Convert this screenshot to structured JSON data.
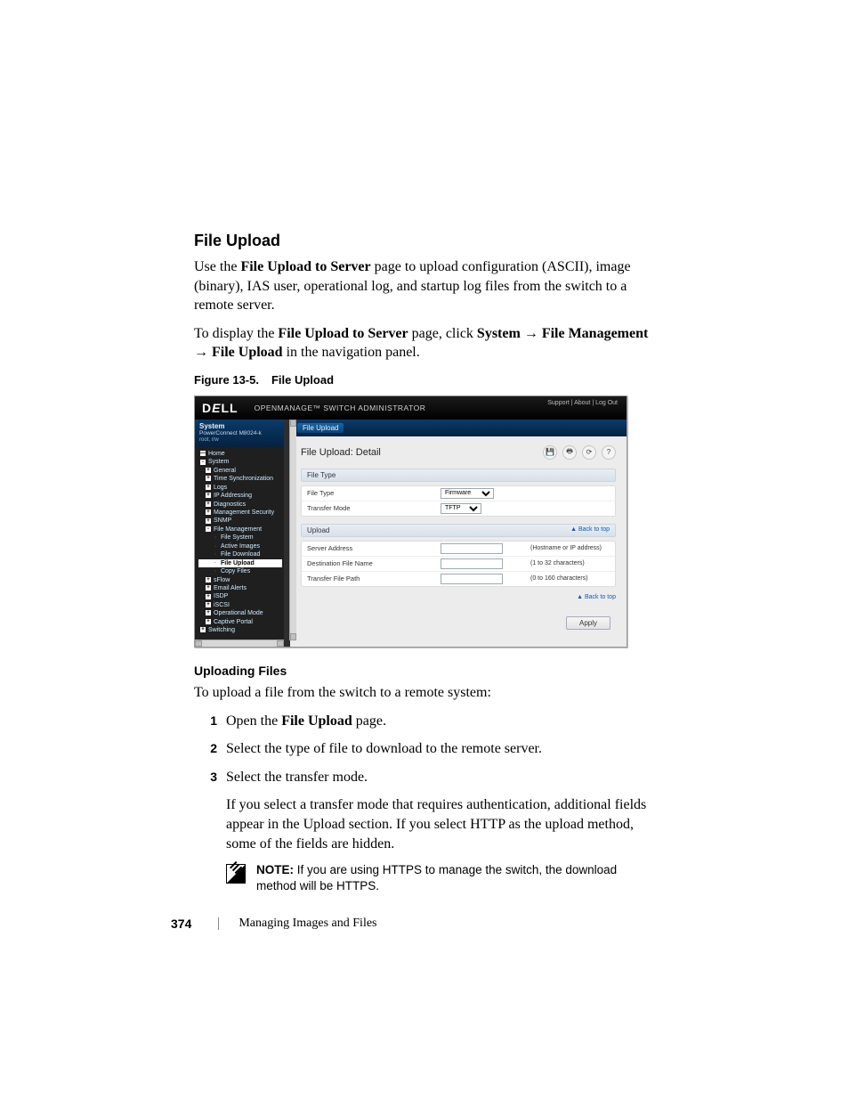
{
  "section_title": "File Upload",
  "intro_para": {
    "pre": "Use the ",
    "b1": "File Upload to Server",
    "post": " page to upload configuration (ASCII), image (binary), IAS user, operational log, and startup log files from the switch to a remote server."
  },
  "nav_para": {
    "pre": "To display the ",
    "b1": "File Upload to Server",
    "mid1": " page, click ",
    "b2": "System",
    "arrow1": " → ",
    "b3": "File Management",
    "arrow2": " → ",
    "b4": "File Upload",
    "post": " in the navigation panel."
  },
  "figure_caption": {
    "num": "Figure 13-5.",
    "title": "File Upload"
  },
  "screenshot": {
    "logo": "DELL",
    "app_title": "OPENMANAGE™ SWITCH ADMINISTRATOR",
    "top_links": "Support  |  About  |  Log Out",
    "nav_header": {
      "title": "System",
      "sub": "PowerConnect M8024-k",
      "user": "root, r/w"
    },
    "nav_tree": [
      {
        "lvl": "root",
        "box": "—",
        "label": "Home"
      },
      {
        "lvl": "root",
        "box": "-",
        "label": "System"
      },
      {
        "lvl": "l1",
        "box": "+",
        "label": "General"
      },
      {
        "lvl": "l1",
        "box": "+",
        "label": "Time Synchronization"
      },
      {
        "lvl": "l1",
        "box": "+",
        "label": "Logs"
      },
      {
        "lvl": "l1",
        "box": "+",
        "label": "IP Addressing"
      },
      {
        "lvl": "l1",
        "box": "+",
        "label": "Diagnostics"
      },
      {
        "lvl": "l1",
        "box": "+",
        "label": "Management Security"
      },
      {
        "lvl": "l1",
        "box": "+",
        "label": "SNMP"
      },
      {
        "lvl": "l1",
        "box": "-",
        "label": "File Management"
      },
      {
        "lvl": "l2",
        "box": "",
        "label": "File System"
      },
      {
        "lvl": "l2",
        "box": "",
        "label": "Active Images"
      },
      {
        "lvl": "l2",
        "box": "",
        "label": "File Download"
      },
      {
        "lvl": "l2",
        "box": "",
        "label": "File Upload",
        "selected": true
      },
      {
        "lvl": "l2",
        "box": "",
        "label": "Copy Files"
      },
      {
        "lvl": "l1",
        "box": "+",
        "label": "sFlow"
      },
      {
        "lvl": "l1",
        "box": "+",
        "label": "Email Alerts"
      },
      {
        "lvl": "l1",
        "box": "+",
        "label": "ISDP"
      },
      {
        "lvl": "l1",
        "box": "+",
        "label": "iSCSI"
      },
      {
        "lvl": "l1",
        "box": "+",
        "label": "Operational Mode"
      },
      {
        "lvl": "l1",
        "box": "+",
        "label": "Captive Portal"
      },
      {
        "lvl": "root",
        "box": "+",
        "label": "Switching"
      }
    ],
    "crumb_tab": "File Upload",
    "panel_title": "File Upload: Detail",
    "icons": {
      "save": "💾",
      "print": "🖶",
      "refresh": "⟳",
      "help": "?"
    },
    "group1": {
      "title": "File Type",
      "rows": [
        {
          "label": "File Type",
          "type": "select",
          "value": "Firmware"
        },
        {
          "label": "Transfer Mode",
          "type": "select",
          "value": "TFTP"
        }
      ]
    },
    "group2": {
      "title": "Upload",
      "backtop": "▲ Back to top",
      "rows": [
        {
          "label": "Server Address",
          "type": "text",
          "hint": "(Hostname or IP address)"
        },
        {
          "label": "Destination File Name",
          "type": "text",
          "hint": "(1 to 32 characters)"
        },
        {
          "label": "Transfer File Path",
          "type": "text",
          "hint": "(0 to 160 characters)"
        }
      ]
    },
    "bottom_backtop": "▲ Back to top",
    "apply": "Apply"
  },
  "uploading_title": "Uploading Files",
  "uploading_intro": "To upload a file from the switch to a remote system:",
  "steps": [
    {
      "n": "1",
      "pre": "Open the ",
      "b": "File Upload",
      "post": " page."
    },
    {
      "n": "2",
      "pre": "Select the type of file to download to the remote server.",
      "b": "",
      "post": ""
    },
    {
      "n": "3",
      "pre": "Select the transfer mode.",
      "b": "",
      "post": ""
    }
  ],
  "step_extra": "If you select a transfer mode that requires authentication, additional fields appear in the Upload section. If you select HTTP as the upload method, some of the fields are hidden.",
  "note": {
    "label": "NOTE:",
    "text": " If you are using HTTPS to manage the switch, the download method will be HTTPS."
  },
  "footer": {
    "page": "374",
    "chapter": "Managing Images and Files"
  }
}
